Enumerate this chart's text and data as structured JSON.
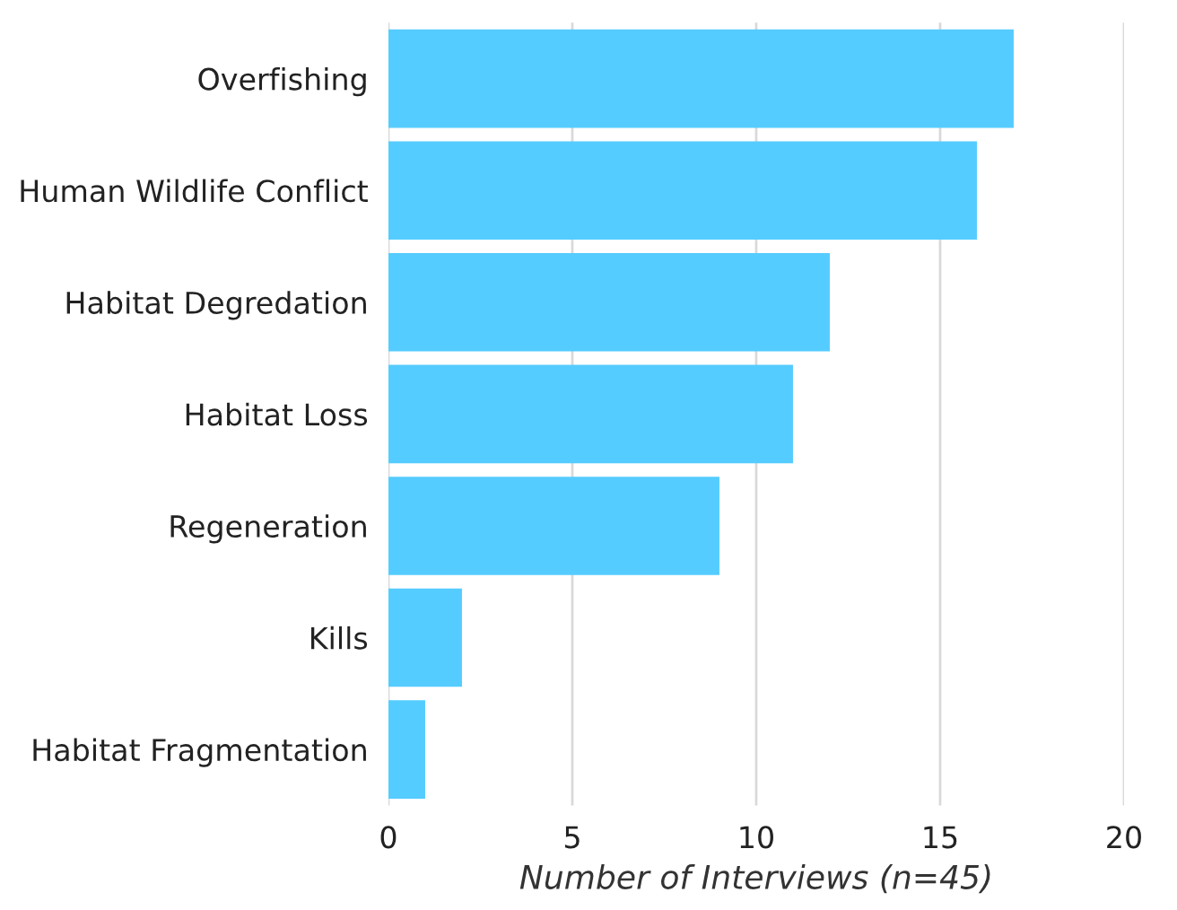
{
  "chart_data": {
    "type": "bar",
    "orientation": "horizontal",
    "categories": [
      "Overfishing",
      "Human Wildlife Conflict",
      "Habitat Degredation",
      "Habitat Loss",
      "Regeneration",
      "Kills",
      "Habitat Fragmentation"
    ],
    "values": [
      17,
      16,
      12,
      11,
      9,
      2,
      1
    ],
    "color": "#55ccff",
    "xlabel": "Number of Interviews (n=45)",
    "xlim": [
      0,
      20
    ],
    "xticks": [
      0,
      5,
      10,
      15,
      20
    ],
    "grid": "x"
  }
}
